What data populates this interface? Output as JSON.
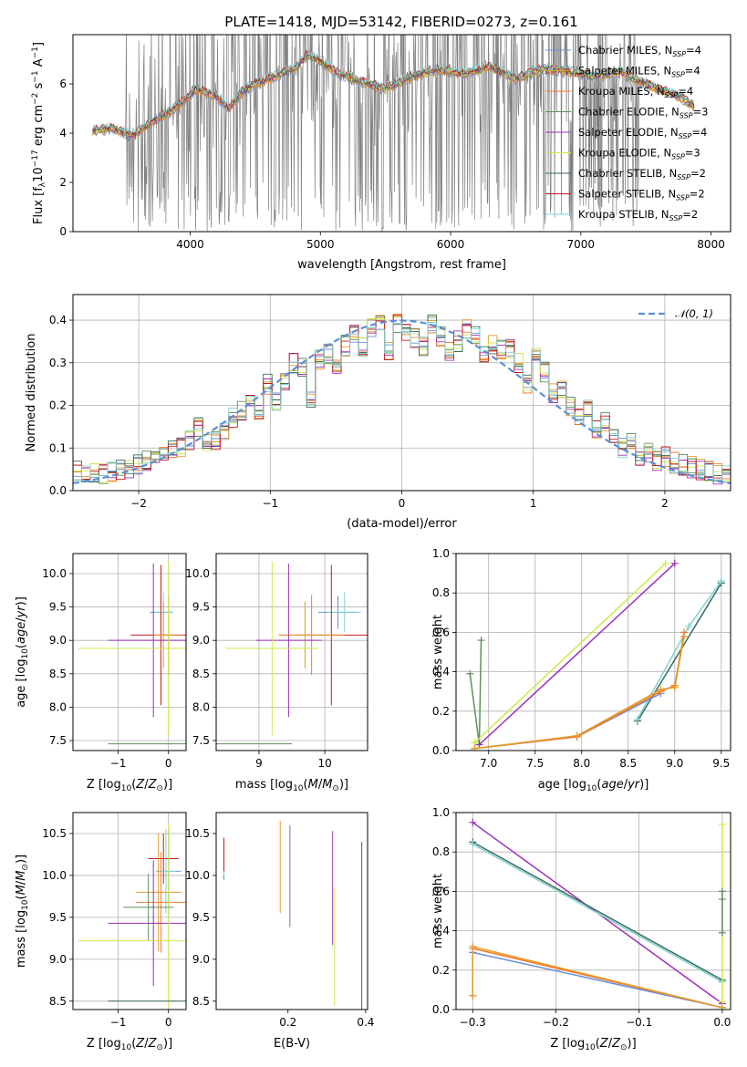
{
  "figure_title": "PLATE=1418, MJD=53142, FIBERID=0273, z=0.161",
  "colors": {
    "Chabrier MILES": "#6b8fd6",
    "Salpeter MILES": "#e39c2f",
    "Kroupa MILES": "#ef7a2a",
    "Chabrier ELODIE": "#5e8f5e",
    "Salpeter ELODIE": "#9b30b8",
    "Kroupa ELODIE": "#cfe84a",
    "Chabrier STELIB": "#3a6b5a",
    "Salpeter STELIB": "#c41c1c",
    "Kroupa STELIB": "#7fd3d3",
    "data": "#808080",
    "normal": "#5b8fd6"
  },
  "chart_data": [
    {
      "id": "spectrum",
      "type": "line",
      "title": "PLATE=1418, MJD=53142, FIBERID=0273, z=0.161",
      "xlabel": "wavelength [Angstrom, rest frame]",
      "ylabel": "Flux [f_λ10^-17 erg cm^-2 s^-1 A^-1]",
      "xlim": [
        3100,
        8150
      ],
      "ylim": [
        0,
        8
      ],
      "xticks": [
        4000,
        5000,
        6000,
        7000,
        8000
      ],
      "yticks": [
        0,
        2,
        4,
        6
      ],
      "grid": false,
      "legend_position": "top-right",
      "legend": [
        {
          "model": "Chabrier MILES",
          "nssp": "4"
        },
        {
          "model": "Salpeter MILES",
          "nssp": "4"
        },
        {
          "model": "Kroupa MILES",
          "nssp": "4"
        },
        {
          "model": "Chabrier ELODIE",
          "nssp": "3"
        },
        {
          "model": "Salpeter ELODIE",
          "nssp": "4"
        },
        {
          "model": "Kroupa ELODIE",
          "nssp": "3"
        },
        {
          "model": "Chabrier STELIB",
          "nssp": "2"
        },
        {
          "model": "Salpeter STELIB",
          "nssp": "2"
        },
        {
          "model": "Kroupa STELIB",
          "nssp": "2"
        }
      ],
      "continuum": {
        "x": [
          3250,
          3400,
          3550,
          3700,
          3850,
          3950,
          4050,
          4200,
          4300,
          4400,
          4500,
          4650,
          4800,
          4900,
          5000,
          5150,
          5300,
          5500,
          5700,
          5900,
          6100,
          6300,
          6500,
          6700,
          6900,
          7100,
          7300,
          7450,
          7600,
          7750,
          7870
        ],
        "y": [
          4.1,
          4.2,
          3.9,
          4.4,
          4.9,
          5.3,
          5.8,
          5.5,
          5.0,
          5.7,
          6.0,
          6.3,
          6.6,
          7.2,
          6.9,
          6.4,
          6.1,
          5.8,
          6.3,
          6.6,
          6.4,
          6.7,
          6.2,
          6.6,
          6.5,
          6.3,
          6.5,
          6.1,
          5.8,
          5.5,
          5.1
        ]
      }
    },
    {
      "id": "residuals",
      "type": "histogram",
      "xlabel": "(data-model)/error",
      "ylabel": "Normed distribution",
      "xlim": [
        -2.5,
        2.5
      ],
      "ylim": [
        0,
        0.46
      ],
      "xticks": [
        -2,
        -1,
        0,
        1,
        2
      ],
      "yticks": [
        0.0,
        0.1,
        0.2,
        0.3,
        0.4
      ],
      "grid": true,
      "legend": "𝒩(0, 1)",
      "legend_position": "top-right",
      "bin_width": 0.1,
      "bins_start": -2.5,
      "base_values": [
        0.045,
        0.04,
        0.04,
        0.04,
        0.045,
        0.05,
        0.055,
        0.06,
        0.07,
        0.075,
        0.085,
        0.095,
        0.1,
        0.12,
        0.15,
        0.11,
        0.12,
        0.14,
        0.17,
        0.19,
        0.22,
        0.19,
        0.25,
        0.21,
        0.26,
        0.3,
        0.29,
        0.22,
        0.31,
        0.32,
        0.3,
        0.34,
        0.37,
        0.34,
        0.38,
        0.39,
        0.33,
        0.39,
        0.37,
        0.36,
        0.34,
        0.39,
        0.36,
        0.33,
        0.35,
        0.38,
        0.36,
        0.32,
        0.34,
        0.33,
        0.33,
        0.3,
        0.25,
        0.32,
        0.28,
        0.23,
        0.24,
        0.2,
        0.17,
        0.19,
        0.14,
        0.16,
        0.13,
        0.1,
        0.12,
        0.08,
        0.09,
        0.07,
        0.08,
        0.065,
        0.06,
        0.055,
        0.05,
        0.045,
        0.04,
        0.035,
        0.035
      ]
    },
    {
      "id": "age-vs-Z",
      "type": "errorbar",
      "xlabel": "Z [log10(Z/Z⊙)]",
      "ylabel": "age [log10(age/yr)]",
      "xlim": [
        -1.9,
        0.35
      ],
      "ylim": [
        7.35,
        10.3
      ],
      "xticks": [
        -1,
        0
      ],
      "yticks": [
        7.5,
        8.0,
        8.5,
        9.0,
        9.5,
        10.0
      ],
      "grid": true,
      "points": [
        {
          "model": "Chabrier MILES",
          "x": -0.15,
          "y": 9.42,
          "xerr": 0.22,
          "yerr": 0.25
        },
        {
          "model": "Kroupa STELIB",
          "x": -0.1,
          "y": 9.42,
          "xerr": 0.2,
          "yerr": 0.3
        },
        {
          "model": "Salpeter STELIB",
          "x": -0.15,
          "y": 9.08,
          "xerr": 0.6,
          "yerr": 1.05
        },
        {
          "model": "Kroupa MILES",
          "x": 0.0,
          "y": 9.08,
          "xerr": 0.3,
          "yerr": 0.6
        },
        {
          "model": "Salpeter MILES",
          "x": -0.1,
          "y": 9.08,
          "xerr": 0.2,
          "yerr": 0.5
        },
        {
          "model": "Salpeter ELODIE",
          "x": -0.3,
          "y": 9.0,
          "xerr": 0.9,
          "yerr": 1.15
        },
        {
          "model": "Kroupa ELODIE",
          "x": 0.0,
          "y": 8.88,
          "xerr": 1.8,
          "yerr": 1.3
        },
        {
          "model": "Chabrier ELODIE",
          "x": 0.0,
          "y": 7.45,
          "xerr": 1.2,
          "yerr": 0
        }
      ]
    },
    {
      "id": "age-vs-mass",
      "type": "errorbar",
      "xlabel": "mass [log10(M/M⊙)]",
      "ylabel": "",
      "xlim": [
        8.35,
        10.65
      ],
      "ylim": [
        7.35,
        10.3
      ],
      "xticks": [
        9,
        10
      ],
      "yticks": [
        7.5,
        8.0,
        8.5,
        9.0,
        9.5,
        10.0
      ],
      "grid": true,
      "points": [
        {
          "model": "Chabrier MILES",
          "x": 10.2,
          "y": 9.42,
          "xerr": 0.3,
          "yerr": 0.25
        },
        {
          "model": "Kroupa STELIB",
          "x": 10.3,
          "y": 9.42,
          "xerr": 0.25,
          "yerr": 0.3
        },
        {
          "model": "Salpeter STELIB",
          "x": 10.1,
          "y": 9.08,
          "xerr": 0.55,
          "yerr": 1.05
        },
        {
          "model": "Kroupa MILES",
          "x": 9.8,
          "y": 9.08,
          "xerr": 0.5,
          "yerr": 0.6
        },
        {
          "model": "Salpeter MILES",
          "x": 9.7,
          "y": 9.08,
          "xerr": 0.4,
          "yerr": 0.5
        },
        {
          "model": "Salpeter ELODIE",
          "x": 9.45,
          "y": 9.0,
          "xerr": 0.5,
          "yerr": 1.15
        },
        {
          "model": "Kroupa ELODIE",
          "x": 9.2,
          "y": 8.88,
          "xerr": 0.7,
          "yerr": 1.3
        },
        {
          "model": "Chabrier ELODIE",
          "x": 8.5,
          "y": 7.45,
          "xerr": 1.0,
          "yerr": 0
        }
      ]
    },
    {
      "id": "weight-vs-age",
      "type": "line",
      "xlabel": "age [log10(age/yr)]",
      "ylabel": "mass weight",
      "xlim": [
        6.65,
        9.6
      ],
      "ylim": [
        0,
        1
      ],
      "xticks": [
        7.0,
        7.5,
        8.0,
        8.5,
        9.0,
        9.5
      ],
      "yticks": [
        0.0,
        0.2,
        0.4,
        0.6,
        0.8,
        1.0
      ],
      "grid": true,
      "series": [
        {
          "model": "Chabrier ELODIE",
          "x": [
            6.8,
            6.9,
            6.92
          ],
          "y": [
            0.39,
            0.03,
            0.56
          ]
        },
        {
          "model": "Kroupa ELODIE",
          "x": [
            6.85,
            8.9
          ],
          "y": [
            0.04,
            0.95
          ]
        },
        {
          "model": "Salpeter ELODIE",
          "x": [
            6.9,
            9.0
          ],
          "y": [
            0.03,
            0.95
          ]
        },
        {
          "model": "Chabrier STELIB",
          "x": [
            8.6,
            9.5
          ],
          "y": [
            0.15,
            0.85
          ]
        },
        {
          "model": "Kroupa STELIB",
          "x": [
            8.6,
            9.15,
            9.5
          ],
          "y": [
            0.16,
            0.63,
            0.86
          ]
        },
        {
          "model": "Chabrier MILES",
          "x": [
            6.85,
            7.95,
            8.85
          ],
          "y": [
            0.01,
            0.07,
            0.29
          ]
        },
        {
          "model": "Kroupa MILES",
          "x": [
            6.85,
            7.95,
            8.85,
            9.0,
            9.1
          ],
          "y": [
            0.01,
            0.07,
            0.3,
            0.33,
            0.6
          ]
        },
        {
          "model": "Salpeter MILES",
          "x": [
            6.85,
            7.95,
            8.85,
            9.0,
            9.1
          ],
          "y": [
            0.01,
            0.075,
            0.31,
            0.32,
            0.58
          ]
        }
      ]
    },
    {
      "id": "mass-vs-Z",
      "type": "errorbar",
      "xlabel": "Z [log10(Z/Z⊙)]",
      "ylabel": "mass [log10(M/M⊙)]",
      "xlim": [
        -1.9,
        0.35
      ],
      "ylim": [
        8.4,
        10.75
      ],
      "xticks": [
        -1,
        0
      ],
      "yticks": [
        8.5,
        9.0,
        9.5,
        10.0,
        10.5
      ],
      "grid": true,
      "points": [
        {
          "model": "Salpeter STELIB",
          "x": -0.1,
          "y": 10.2,
          "xerr": 0.3,
          "yerr": 0.3
        },
        {
          "model": "Chabrier MILES",
          "x": 0.0,
          "y": 10.05,
          "xerr": 0.25,
          "yerr": 0.5
        },
        {
          "model": "Kroupa STELIB",
          "x": -0.05,
          "y": 10.05,
          "xerr": 0.2,
          "yerr": 0.5
        },
        {
          "model": "Salpeter MILES",
          "x": -0.2,
          "y": 9.8,
          "xerr": 0.45,
          "yerr": 0.7
        },
        {
          "model": "Kroupa MILES",
          "x": -0.15,
          "y": 9.68,
          "xerr": 0.5,
          "yerr": 0.6
        },
        {
          "model": "Chabrier ELODIE",
          "x": -0.4,
          "y": 9.62,
          "xerr": 0.5,
          "yerr": 0.4
        },
        {
          "model": "Salpeter ELODIE",
          "x": -0.3,
          "y": 9.43,
          "xerr": 0.9,
          "yerr": 0.75
        },
        {
          "model": "Kroupa ELODIE",
          "x": 0.0,
          "y": 9.22,
          "xerr": 1.8,
          "yerr": 1.4
        },
        {
          "model": "Chabrier STELIB",
          "x": 0.0,
          "y": 8.5,
          "xerr": 1.2,
          "yerr": 0
        }
      ]
    },
    {
      "id": "mass-vs-EBV",
      "type": "errorbar",
      "xlabel": "E(B-V)",
      "ylabel": "",
      "xlim": [
        0.015,
        0.405
      ],
      "ylim": [
        8.4,
        10.75
      ],
      "xticks": [
        0.2,
        0.4
      ],
      "yticks": [
        8.5,
        9.0,
        9.5,
        10.0,
        10.5
      ],
      "grid": false,
      "points": [
        {
          "model": "Chabrier ELODIE",
          "x": 0.035,
          "y": 10.2,
          "xerr": 0,
          "yerr": 0.25
        },
        {
          "model": "Kroupa STELIB",
          "x": 0.035,
          "y": 10.15,
          "xerr": 0,
          "yerr": 0.15
        },
        {
          "model": "Salpeter STELIB",
          "x": 0.035,
          "y": 10.25,
          "xerr": 0,
          "yerr": 0.2
        },
        {
          "model": "Salpeter MILES",
          "x": 0.18,
          "y": 10.1,
          "xerr": 0,
          "yerr": 0.55
        },
        {
          "model": "Kroupa MILES",
          "x": 0.205,
          "y": 9.98,
          "xerr": 0,
          "yerr": 0.6
        },
        {
          "model": "Chabrier MILES",
          "x": 0.205,
          "y": 10.0,
          "xerr": 0,
          "yerr": 0.6
        },
        {
          "model": "Salpeter ELODIE",
          "x": 0.315,
          "y": 9.85,
          "xerr": 0,
          "yerr": 0.68
        },
        {
          "model": "Kroupa ELODIE",
          "x": 0.32,
          "y": 9.15,
          "xerr": 0,
          "yerr": 0.7
        },
        {
          "model": "Chabrier STELIB",
          "x": 0.39,
          "y": 9.4,
          "xerr": 0,
          "yerr": 1.0
        }
      ]
    },
    {
      "id": "weight-vs-Z",
      "type": "line",
      "xlabel": "Z [log10(Z/Z⊙)]",
      "ylabel": "mass weight",
      "xlim": [
        -0.32,
        0.01
      ],
      "ylim": [
        0,
        1
      ],
      "xticks": [
        -0.3,
        -0.2,
        -0.1,
        0.0
      ],
      "yticks": [
        0.0,
        0.2,
        0.4,
        0.6,
        0.8,
        1.0
      ],
      "grid": true,
      "series": [
        {
          "model": "Salpeter ELODIE",
          "x": [
            -0.3,
            0.0
          ],
          "y": [
            0.95,
            0.03
          ]
        },
        {
          "model": "Chabrier STELIB",
          "x": [
            -0.3,
            0.0
          ],
          "y": [
            0.85,
            0.15
          ]
        },
        {
          "model": "Kroupa STELIB",
          "x": [
            -0.3,
            0.0
          ],
          "y": [
            0.84,
            0.14
          ]
        },
        {
          "model": "Chabrier MILES",
          "x": [
            -0.3,
            0.0
          ],
          "y": [
            0.29,
            0.01
          ]
        },
        {
          "model": "Kroupa MILES",
          "x": [
            -0.3,
            -0.3,
            0.0
          ],
          "y": [
            0.07,
            0.31,
            0.01
          ]
        },
        {
          "model": "Salpeter MILES",
          "x": [
            -0.3,
            -0.3,
            0.0
          ],
          "y": [
            0.07,
            0.32,
            0.01
          ]
        },
        {
          "model": "Kroupa ELODIE",
          "x": [
            0.0,
            0.0
          ],
          "y": [
            0.04,
            0.94
          ]
        },
        {
          "model": "Chabrier ELODIE",
          "x": [
            0.0,
            0.0,
            0.0
          ],
          "y": [
            0.39,
            0.56,
            0.6
          ]
        }
      ]
    }
  ]
}
